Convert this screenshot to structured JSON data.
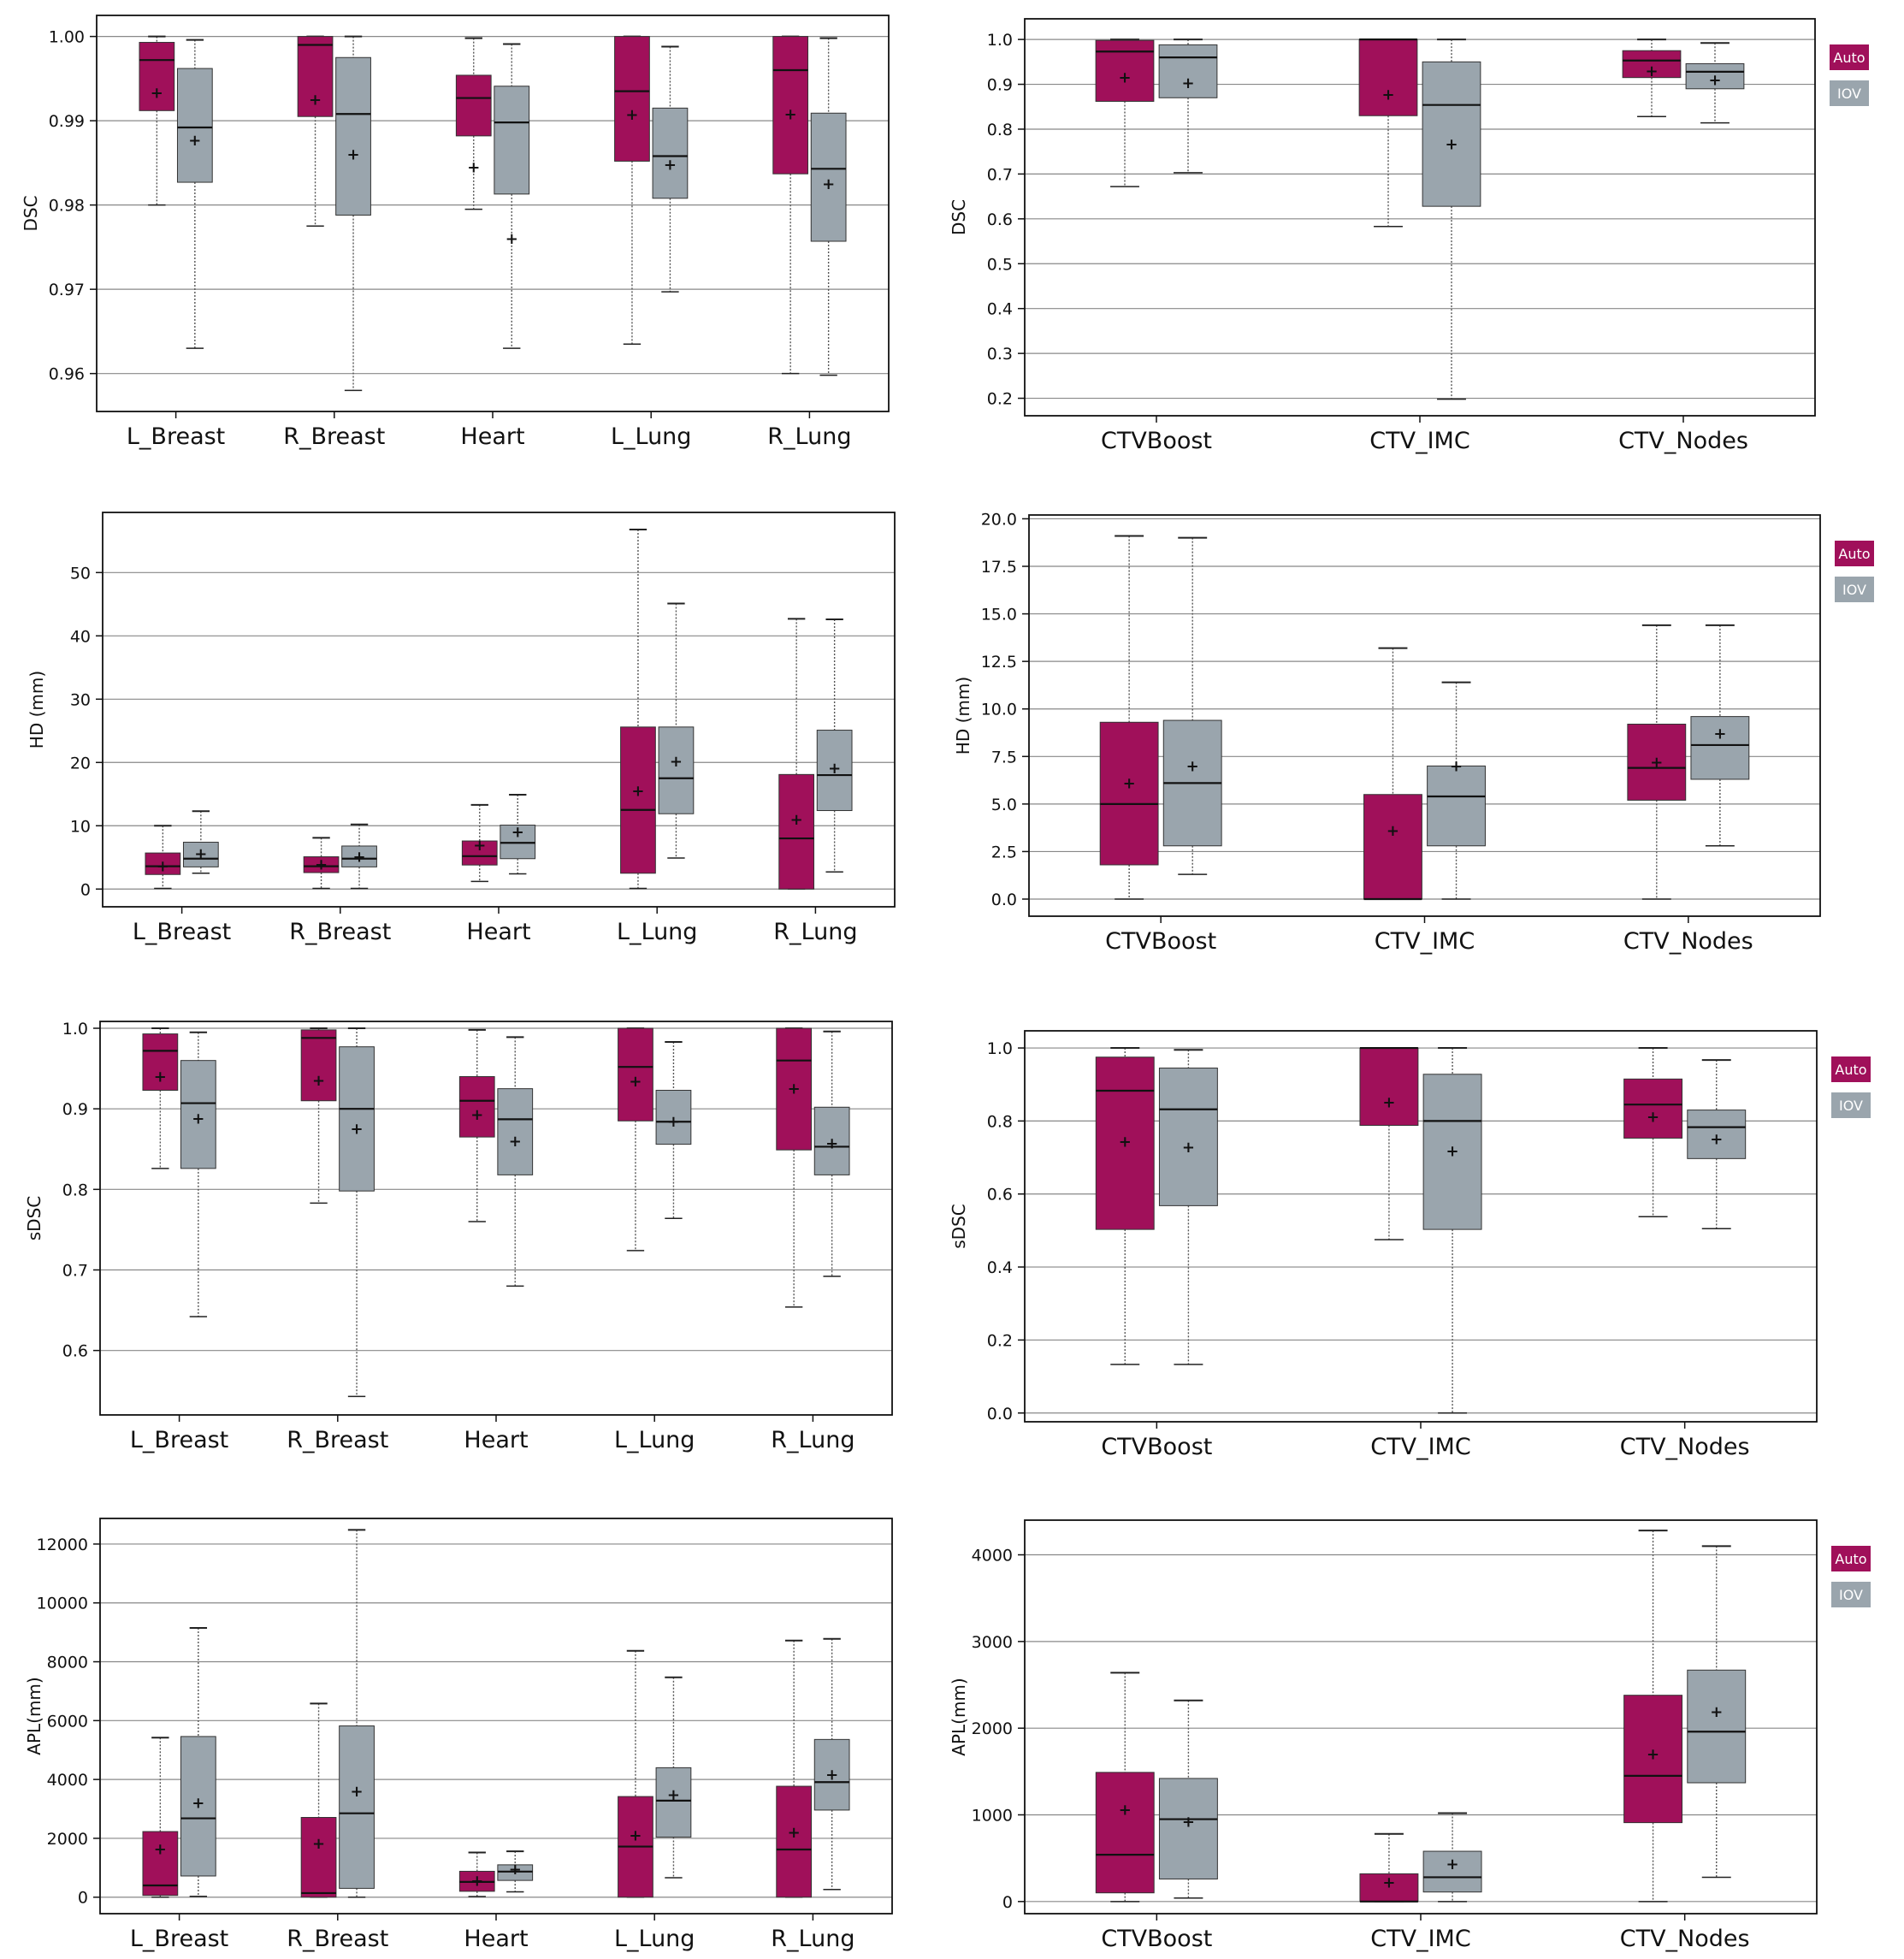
{
  "colors": {
    "auto": "#a0105a",
    "iov": "#9aa5ad",
    "grid": "#888888",
    "whisker": "#555555"
  },
  "legend": {
    "auto": "Auto",
    "iov": "IOV"
  },
  "chart_data": [
    {
      "id": "dsc-oar",
      "type": "box",
      "ylabel": "DSC",
      "ylim": [
        0.9555,
        1.0025
      ],
      "yticks": [
        0.96,
        0.97,
        0.98,
        0.99,
        1.0
      ],
      "ytick_labels": [
        "0.96",
        "0.97",
        "0.98",
        "0.99",
        "1.00"
      ],
      "categories": [
        "L_Breast",
        "R_Breast",
        "Heart",
        "L_Lung",
        "R_Lung"
      ],
      "legend": false,
      "series": [
        {
          "name": "Auto",
          "boxes": [
            {
              "min": 0.98,
              "q1": 0.9912,
              "median": 0.9972,
              "q3": 0.9993,
              "max": 1.0,
              "mean": 0.9933
            },
            {
              "min": 0.9775,
              "q1": 0.9905,
              "median": 0.999,
              "q3": 1.0,
              "max": 1.0,
              "mean": 0.9925
            },
            {
              "min": 0.9795,
              "q1": 0.9882,
              "median": 0.9927,
              "q3": 0.9954,
              "max": 0.9998,
              "mean": 0.9845
            },
            {
              "min": 0.9635,
              "q1": 0.9852,
              "median": 0.9935,
              "q3": 1.0,
              "max": 1.0,
              "mean": 0.9907
            },
            {
              "min": 0.96,
              "q1": 0.9837,
              "median": 0.996,
              "q3": 1.0,
              "max": 1.0,
              "mean": 0.9908
            }
          ]
        },
        {
          "name": "IOV",
          "boxes": [
            {
              "min": 0.963,
              "q1": 0.9827,
              "median": 0.9892,
              "q3": 0.9962,
              "max": 0.9996,
              "mean": 0.9877
            },
            {
              "min": 0.958,
              "q1": 0.9788,
              "median": 0.9908,
              "q3": 0.9975,
              "max": 1.0,
              "mean": 0.986
            },
            {
              "min": 0.963,
              "q1": 0.9813,
              "median": 0.9898,
              "q3": 0.9941,
              "max": 0.9991,
              "mean": 0.976
            },
            {
              "min": 0.9697,
              "q1": 0.9808,
              "median": 0.9858,
              "q3": 0.9915,
              "max": 0.9988,
              "mean": 0.9848
            },
            {
              "min": 0.9598,
              "q1": 0.9757,
              "median": 0.9843,
              "q3": 0.9909,
              "max": 0.9998,
              "mean": 0.9825
            }
          ]
        }
      ]
    },
    {
      "id": "dsc-ctv",
      "type": "box",
      "ylabel": "DSC",
      "ylim": [
        0.161,
        1.046
      ],
      "yticks": [
        0.2,
        0.3,
        0.4,
        0.5,
        0.6,
        0.7,
        0.8,
        0.9,
        1.0
      ],
      "ytick_labels": [
        "0.2",
        "0.3",
        "0.4",
        "0.5",
        "0.6",
        "0.7",
        "0.8",
        "0.9",
        "1.0"
      ],
      "categories": [
        "CTVBoost",
        "CTV_IMC",
        "CTV_Nodes"
      ],
      "legend": true,
      "series": [
        {
          "name": "Auto",
          "boxes": [
            {
              "min": 0.672,
              "q1": 0.862,
              "median": 0.973,
              "q3": 0.998,
              "max": 1.0,
              "mean": 0.915
            },
            {
              "min": 0.583,
              "q1": 0.83,
              "median": 1.0,
              "q3": 1.0,
              "max": 1.0,
              "mean": 0.877
            },
            {
              "min": 0.828,
              "q1": 0.915,
              "median": 0.953,
              "q3": 0.975,
              "max": 1.0,
              "mean": 0.93
            }
          ]
        },
        {
          "name": "IOV",
          "boxes": [
            {
              "min": 0.703,
              "q1": 0.87,
              "median": 0.96,
              "q3": 0.988,
              "max": 1.0,
              "mean": 0.903
            },
            {
              "min": 0.198,
              "q1": 0.628,
              "median": 0.854,
              "q3": 0.95,
              "max": 1.0,
              "mean": 0.767
            },
            {
              "min": 0.814,
              "q1": 0.89,
              "median": 0.928,
              "q3": 0.946,
              "max": 0.992,
              "mean": 0.91
            }
          ]
        }
      ]
    },
    {
      "id": "hd-oar",
      "type": "box",
      "ylabel": "HD (mm)",
      "ylim": [
        -2.8,
        59.5
      ],
      "yticks": [
        0,
        10,
        20,
        30,
        40,
        50
      ],
      "ytick_labels": [
        "0",
        "10",
        "20",
        "30",
        "40",
        "50"
      ],
      "categories": [
        "L_Breast",
        "R_Breast",
        "Heart",
        "L_Lung",
        "R_Lung"
      ],
      "legend": false,
      "series": [
        {
          "name": "Auto",
          "boxes": [
            {
              "min": 0.1,
              "q1": 2.3,
              "median": 3.6,
              "q3": 5.7,
              "max": 10.0,
              "mean": 3.6
            },
            {
              "min": 0.1,
              "q1": 2.6,
              "median": 3.6,
              "q3": 5.1,
              "max": 8.1,
              "mean": 3.9
            },
            {
              "min": 1.2,
              "q1": 3.8,
              "median": 5.2,
              "q3": 7.6,
              "max": 13.3,
              "mean": 6.9
            },
            {
              "min": 0.1,
              "q1": 2.5,
              "median": 12.5,
              "q3": 25.6,
              "max": 56.8,
              "mean": 15.5
            },
            {
              "min": 0.0,
              "q1": 0.0,
              "median": 8.0,
              "q3": 18.1,
              "max": 42.7,
              "mean": 11.0
            }
          ]
        },
        {
          "name": "IOV",
          "boxes": [
            {
              "min": 2.5,
              "q1": 3.5,
              "median": 4.8,
              "q3": 7.4,
              "max": 12.3,
              "mean": 5.6
            },
            {
              "min": 0.1,
              "q1": 3.5,
              "median": 4.8,
              "q3": 6.8,
              "max": 10.2,
              "mean": 5.1
            },
            {
              "min": 2.4,
              "q1": 4.8,
              "median": 7.3,
              "q3": 10.1,
              "max": 14.9,
              "mean": 9.0
            },
            {
              "min": 4.9,
              "q1": 11.9,
              "median": 17.5,
              "q3": 25.6,
              "max": 45.1,
              "mean": 20.2
            },
            {
              "min": 2.7,
              "q1": 12.4,
              "median": 18.0,
              "q3": 25.1,
              "max": 42.6,
              "mean": 19.1
            }
          ]
        }
      ]
    },
    {
      "id": "hd-ctv",
      "type": "box",
      "ylabel": "HD (mm)",
      "ylim": [
        -0.9,
        20.2
      ],
      "yticks": [
        0,
        2.5,
        5,
        7.5,
        10,
        12.5,
        15,
        17.5,
        20
      ],
      "ytick_labels": [
        "0.0",
        "2.5",
        "5.0",
        "7.5",
        "10.0",
        "12.5",
        "15.0",
        "17.5",
        "20.0"
      ],
      "categories": [
        "CTVBoost",
        "CTV_IMC",
        "CTV_Nodes"
      ],
      "legend": true,
      "series": [
        {
          "name": "Auto",
          "boxes": [
            {
              "min": 0.0,
              "q1": 1.8,
              "median": 5.0,
              "q3": 9.3,
              "max": 19.1,
              "mean": 6.1
            },
            {
              "min": 0.0,
              "q1": 0.0,
              "median": 0.0,
              "q3": 5.5,
              "max": 13.2,
              "mean": 3.6
            },
            {
              "min": 0.0,
              "q1": 5.2,
              "median": 6.9,
              "q3": 9.2,
              "max": 14.4,
              "mean": 7.2
            }
          ]
        },
        {
          "name": "IOV",
          "boxes": [
            {
              "min": 1.3,
              "q1": 2.8,
              "median": 6.1,
              "q3": 9.4,
              "max": 19.0,
              "mean": 7.0
            },
            {
              "min": 0.0,
              "q1": 2.8,
              "median": 5.4,
              "q3": 7.0,
              "max": 11.4,
              "mean": 7.0
            },
            {
              "min": 2.8,
              "q1": 6.3,
              "median": 8.1,
              "q3": 9.6,
              "max": 14.4,
              "mean": 8.7
            }
          ]
        }
      ]
    },
    {
      "id": "sdsc-oar",
      "type": "box",
      "ylabel": "sDSC",
      "ylim": [
        0.52,
        1.0085
      ],
      "yticks": [
        0.6,
        0.7,
        0.8,
        0.9,
        1.0
      ],
      "ytick_labels": [
        "0.6",
        "0.7",
        "0.8",
        "0.9",
        "1.0"
      ],
      "categories": [
        "L_Breast",
        "R_Breast",
        "Heart",
        "L_Lung",
        "R_Lung"
      ],
      "legend": false,
      "series": [
        {
          "name": "Auto",
          "boxes": [
            {
              "min": 0.826,
              "q1": 0.923,
              "median": 0.972,
              "q3": 0.993,
              "max": 1.0,
              "mean": 0.94
            },
            {
              "min": 0.783,
              "q1": 0.91,
              "median": 0.988,
              "q3": 0.998,
              "max": 1.0,
              "mean": 0.935
            },
            {
              "min": 0.76,
              "q1": 0.865,
              "median": 0.91,
              "q3": 0.94,
              "max": 0.998,
              "mean": 0.893
            },
            {
              "min": 0.724,
              "q1": 0.885,
              "median": 0.952,
              "q3": 1.0,
              "max": 1.0,
              "mean": 0.934
            },
            {
              "min": 0.654,
              "q1": 0.849,
              "median": 0.96,
              "q3": 1.0,
              "max": 1.0,
              "mean": 0.925
            }
          ]
        },
        {
          "name": "IOV",
          "boxes": [
            {
              "min": 0.642,
              "q1": 0.826,
              "median": 0.907,
              "q3": 0.96,
              "max": 0.995,
              "mean": 0.888
            },
            {
              "min": 0.543,
              "q1": 0.798,
              "median": 0.9,
              "q3": 0.977,
              "max": 1.0,
              "mean": 0.875
            },
            {
              "min": 0.68,
              "q1": 0.818,
              "median": 0.887,
              "q3": 0.925,
              "max": 0.989,
              "mean": 0.86
            },
            {
              "min": 0.764,
              "q1": 0.856,
              "median": 0.884,
              "q3": 0.923,
              "max": 0.983,
              "mean": 0.884
            },
            {
              "min": 0.692,
              "q1": 0.818,
              "median": 0.853,
              "q3": 0.902,
              "max": 0.996,
              "mean": 0.857
            }
          ]
        }
      ]
    },
    {
      "id": "sdsc-ctv",
      "type": "box",
      "ylabel": "sDSC",
      "ylim": [
        -0.024,
        1.047
      ],
      "yticks": [
        0.0,
        0.2,
        0.4,
        0.6,
        0.8,
        1.0
      ],
      "ytick_labels": [
        "0.0",
        "0.2",
        "0.4",
        "0.6",
        "0.8",
        "1.0"
      ],
      "categories": [
        "CTVBoost",
        "CTV_IMC",
        "CTV_Nodes"
      ],
      "legend": true,
      "series": [
        {
          "name": "Auto",
          "boxes": [
            {
              "min": 0.133,
              "q1": 0.503,
              "median": 0.883,
              "q3": 0.975,
              "max": 1.0,
              "mean": 0.743
            },
            {
              "min": 0.475,
              "q1": 0.788,
              "median": 1.0,
              "q3": 1.0,
              "max": 1.0,
              "mean": 0.851
            },
            {
              "min": 0.538,
              "q1": 0.753,
              "median": 0.845,
              "q3": 0.915,
              "max": 1.0,
              "mean": 0.812
            }
          ]
        },
        {
          "name": "IOV",
          "boxes": [
            {
              "min": 0.133,
              "q1": 0.568,
              "median": 0.832,
              "q3": 0.945,
              "max": 0.995,
              "mean": 0.728
            },
            {
              "min": 0.0,
              "q1": 0.503,
              "median": 0.8,
              "q3": 0.928,
              "max": 1.0,
              "mean": 0.718
            },
            {
              "min": 0.505,
              "q1": 0.697,
              "median": 0.783,
              "q3": 0.83,
              "max": 0.967,
              "mean": 0.75
            }
          ]
        }
      ]
    },
    {
      "id": "apl-oar",
      "type": "box",
      "ylabel": "APL(mm)",
      "ylim": [
        -560,
        12870
      ],
      "yticks": [
        0,
        2000,
        4000,
        6000,
        8000,
        10000,
        12000
      ],
      "ytick_labels": [
        "0",
        "2000",
        "4000",
        "6000",
        "8000",
        "10000",
        "12000"
      ],
      "categories": [
        "L_Breast",
        "R_Breast",
        "Heart",
        "L_Lung",
        "R_Lung"
      ],
      "legend": false,
      "series": [
        {
          "name": "Auto",
          "boxes": [
            {
              "min": 0,
              "q1": 60,
              "median": 400,
              "q3": 2230,
              "max": 5420,
              "mean": 1640
            },
            {
              "min": 0,
              "q1": 0,
              "median": 140,
              "q3": 2710,
              "max": 6580,
              "mean": 1830
            },
            {
              "min": 20,
              "q1": 200,
              "median": 520,
              "q3": 880,
              "max": 1520,
              "mean": 560
            },
            {
              "min": 0,
              "q1": 0,
              "median": 1720,
              "q3": 3420,
              "max": 8370,
              "mean": 2100
            },
            {
              "min": 0,
              "q1": 0,
              "median": 1620,
              "q3": 3770,
              "max": 8720,
              "mean": 2200
            }
          ]
        },
        {
          "name": "IOV",
          "boxes": [
            {
              "min": 30,
              "q1": 720,
              "median": 2680,
              "q3": 5460,
              "max": 9150,
              "mean": 3200
            },
            {
              "min": 0,
              "q1": 300,
              "median": 2850,
              "q3": 5820,
              "max": 12480,
              "mean": 3600
            },
            {
              "min": 180,
              "q1": 570,
              "median": 870,
              "q3": 1100,
              "max": 1560,
              "mean": 950
            },
            {
              "min": 660,
              "q1": 2040,
              "median": 3280,
              "q3": 4400,
              "max": 7470,
              "mean": 3480
            },
            {
              "min": 260,
              "q1": 2960,
              "median": 3910,
              "q3": 5360,
              "max": 8780,
              "mean": 4170
            }
          ]
        }
      ]
    },
    {
      "id": "apl-ctv",
      "type": "box",
      "ylabel": "APL(mm)",
      "ylim": [
        -140,
        4400
      ],
      "yticks": [
        0,
        1000,
        2000,
        3000,
        4000
      ],
      "ytick_labels": [
        "0",
        "1000",
        "2000",
        "3000",
        "4000"
      ],
      "categories": [
        "CTVBoost",
        "CTV_IMC",
        "CTV_Nodes"
      ],
      "legend": true,
      "series": [
        {
          "name": "Auto",
          "boxes": [
            {
              "min": 0,
              "q1": 100,
              "median": 540,
              "q3": 1490,
              "max": 2640,
              "mean": 1060
            },
            {
              "min": 0,
              "q1": 0,
              "median": 0,
              "q3": 320,
              "max": 780,
              "mean": 220
            },
            {
              "min": 0,
              "q1": 910,
              "median": 1450,
              "q3": 2380,
              "max": 4280,
              "mean": 1700
            }
          ]
        },
        {
          "name": "IOV",
          "boxes": [
            {
              "min": 40,
              "q1": 260,
              "median": 950,
              "q3": 1420,
              "max": 2320,
              "mean": 920
            },
            {
              "min": 0,
              "q1": 110,
              "median": 280,
              "q3": 580,
              "max": 1020,
              "mean": 430
            },
            {
              "min": 280,
              "q1": 1370,
              "median": 1960,
              "q3": 2670,
              "max": 4100,
              "mean": 2190
            }
          ]
        }
      ]
    }
  ]
}
